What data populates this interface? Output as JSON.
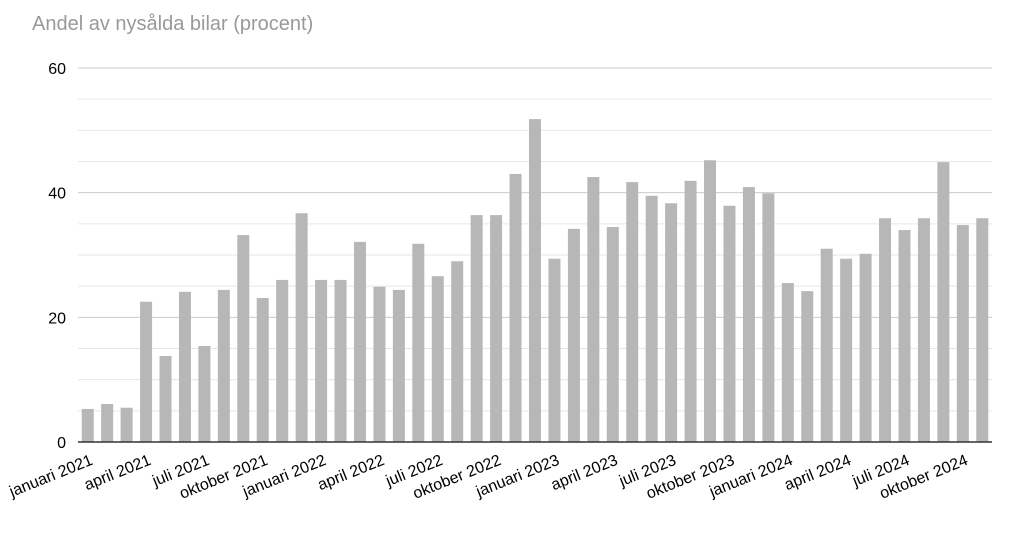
{
  "chart_data": {
    "type": "bar",
    "title": "Andel av nysålda bilar (procent)",
    "categories": [
      "januari 2021",
      null,
      null,
      "april 2021",
      null,
      null,
      "juli 2021",
      null,
      null,
      "oktober 2021",
      null,
      null,
      "januari 2022",
      null,
      null,
      "april 2022",
      null,
      null,
      "juli 2022",
      null,
      null,
      "oktober 2022",
      null,
      null,
      "januari 2023",
      null,
      null,
      "april 2023",
      null,
      null,
      "juli 2023",
      null,
      null,
      "oktober 2023",
      null,
      null,
      "januari 2024",
      null,
      null,
      "april 2024",
      null,
      null,
      "juli 2024",
      null,
      null,
      "oktober 2024",
      null
    ],
    "values": [
      5.3,
      6.1,
      5.5,
      22.5,
      13.8,
      24.1,
      15.4,
      24.4,
      33.2,
      23.1,
      26.0,
      36.7,
      26.0,
      26.0,
      32.1,
      24.9,
      24.4,
      31.8,
      26.6,
      29.0,
      36.4,
      36.4,
      43.0,
      51.8,
      29.4,
      34.2,
      42.5,
      34.5,
      41.7,
      39.5,
      38.3,
      41.9,
      45.2,
      37.9,
      40.9,
      39.9,
      25.5,
      24.2,
      31.0,
      29.4,
      30.2,
      35.9,
      34.0,
      35.9,
      44.9,
      34.8,
      35.9
    ],
    "color": "#b7b7b7",
    "ylim": [
      0,
      60
    ],
    "yticks": [
      0,
      20,
      40,
      60
    ],
    "yminorticks": [
      5,
      10,
      15,
      25,
      30,
      35,
      45,
      50,
      55
    ],
    "grid": true
  }
}
